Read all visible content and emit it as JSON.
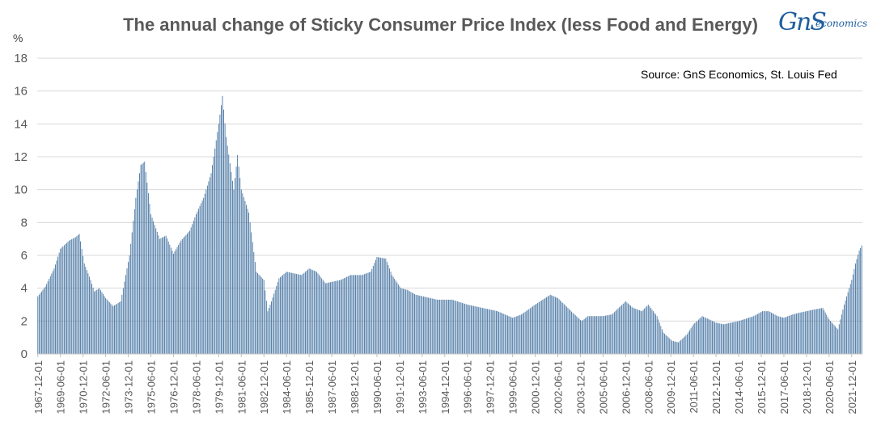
{
  "chart_data": {
    "type": "bar",
    "title": "The annual change of Sticky Consumer Price Index (less Food and Energy)",
    "source": "Source: GnS Economics, St. Louis Fed",
    "ylabel": "%",
    "ylim": [
      0,
      18
    ],
    "yticks": [
      0,
      2,
      4,
      6,
      8,
      10,
      12,
      14,
      16,
      18
    ],
    "grid": true,
    "bar_color": "#3f6f9f",
    "x_start": "1967-12",
    "x_end": "2022-08",
    "x_tick_labels": [
      "1967-12-01",
      "1969-06-01",
      "1970-12-01",
      "1972-06-01",
      "1973-12-01",
      "1975-06-01",
      "1976-12-01",
      "1978-06-01",
      "1979-12-01",
      "1981-06-01",
      "1982-12-01",
      "1984-06-01",
      "1985-12-01",
      "1987-06-01",
      "1988-12-01",
      "1990-06-01",
      "1991-12-01",
      "1993-06-01",
      "1994-12-01",
      "1996-06-01",
      "1997-12-01",
      "1999-06-01",
      "2000-12-01",
      "2002-06-01",
      "2003-12-01",
      "2005-06-01",
      "2006-12-01",
      "2008-06-01",
      "2009-12-01",
      "2011-06-01",
      "2012-12-01",
      "2014-06-01",
      "2015-12-01",
      "2017-06-01",
      "2018-12-01",
      "2020-06-01",
      "2021-12-01"
    ],
    "anchors": [
      [
        "1967-12",
        3.5
      ],
      [
        "1968-06",
        4.1
      ],
      [
        "1969-01",
        5.2
      ],
      [
        "1969-06",
        6.4
      ],
      [
        "1970-01",
        6.9
      ],
      [
        "1970-06",
        7.1
      ],
      [
        "1970-09",
        7.3
      ],
      [
        "1971-01",
        5.5
      ],
      [
        "1971-06",
        4.5
      ],
      [
        "1971-09",
        3.8
      ],
      [
        "1972-01",
        4.0
      ],
      [
        "1972-06",
        3.4
      ],
      [
        "1972-12",
        2.9
      ],
      [
        "1973-06",
        3.2
      ],
      [
        "1974-01",
        6.0
      ],
      [
        "1974-06",
        9.5
      ],
      [
        "1974-10",
        11.5
      ],
      [
        "1975-01",
        11.7
      ],
      [
        "1975-06",
        8.5
      ],
      [
        "1976-01",
        7.0
      ],
      [
        "1976-06",
        7.2
      ],
      [
        "1976-12",
        6.1
      ],
      [
        "1977-06",
        6.9
      ],
      [
        "1978-01",
        7.5
      ],
      [
        "1978-06",
        8.5
      ],
      [
        "1978-12",
        9.5
      ],
      [
        "1979-06",
        11.0
      ],
      [
        "1979-12",
        14.0
      ],
      [
        "1980-03",
        15.7
      ],
      [
        "1980-06",
        13.2
      ],
      [
        "1980-12",
        10.0
      ],
      [
        "1981-03",
        12.1
      ],
      [
        "1981-06",
        10.0
      ],
      [
        "1981-12",
        8.6
      ],
      [
        "1982-06",
        5.0
      ],
      [
        "1982-12",
        4.5
      ],
      [
        "1983-03",
        2.6
      ],
      [
        "1983-06",
        3.2
      ],
      [
        "1983-12",
        4.6
      ],
      [
        "1984-06",
        5.0
      ],
      [
        "1985-06",
        4.8
      ],
      [
        "1985-12",
        5.2
      ],
      [
        "1986-06",
        5.0
      ],
      [
        "1987-01",
        4.3
      ],
      [
        "1988-01",
        4.5
      ],
      [
        "1988-09",
        4.8
      ],
      [
        "1989-06",
        4.8
      ],
      [
        "1990-01",
        5.0
      ],
      [
        "1990-06",
        5.9
      ],
      [
        "1991-01",
        5.8
      ],
      [
        "1991-06",
        4.8
      ],
      [
        "1992-01",
        4.0
      ],
      [
        "1992-06",
        3.9
      ],
      [
        "1993-01",
        3.6
      ],
      [
        "1994-06",
        3.3
      ],
      [
        "1995-06",
        3.3
      ],
      [
        "1996-06",
        3.0
      ],
      [
        "1997-06",
        2.8
      ],
      [
        "1998-06",
        2.6
      ],
      [
        "1999-06",
        2.2
      ],
      [
        "2000-01",
        2.4
      ],
      [
        "2000-12",
        3.0
      ],
      [
        "2001-12",
        3.6
      ],
      [
        "2002-06",
        3.4
      ],
      [
        "2003-06",
        2.5
      ],
      [
        "2004-01",
        2.0
      ],
      [
        "2004-06",
        2.3
      ],
      [
        "2005-06",
        2.3
      ],
      [
        "2006-01",
        2.4
      ],
      [
        "2006-12",
        3.2
      ],
      [
        "2007-06",
        2.8
      ],
      [
        "2008-01",
        2.6
      ],
      [
        "2008-06",
        3.0
      ],
      [
        "2009-01",
        2.3
      ],
      [
        "2009-06",
        1.3
      ],
      [
        "2010-01",
        0.8
      ],
      [
        "2010-06",
        0.7
      ],
      [
        "2011-01",
        1.2
      ],
      [
        "2011-06",
        1.8
      ],
      [
        "2012-01",
        2.3
      ],
      [
        "2012-12",
        1.9
      ],
      [
        "2013-06",
        1.8
      ],
      [
        "2014-06",
        2.0
      ],
      [
        "2015-06",
        2.3
      ],
      [
        "2016-01",
        2.6
      ],
      [
        "2016-06",
        2.6
      ],
      [
        "2017-01",
        2.3
      ],
      [
        "2017-06",
        2.2
      ],
      [
        "2018-01",
        2.4
      ],
      [
        "2018-06",
        2.5
      ],
      [
        "2019-06",
        2.7
      ],
      [
        "2020-01",
        2.8
      ],
      [
        "2020-06",
        2.1
      ],
      [
        "2021-01",
        1.5
      ],
      [
        "2021-06",
        3.0
      ],
      [
        "2021-12",
        4.5
      ],
      [
        "2022-03",
        5.5
      ],
      [
        "2022-06",
        6.3
      ],
      [
        "2022-08",
        6.6
      ]
    ]
  }
}
